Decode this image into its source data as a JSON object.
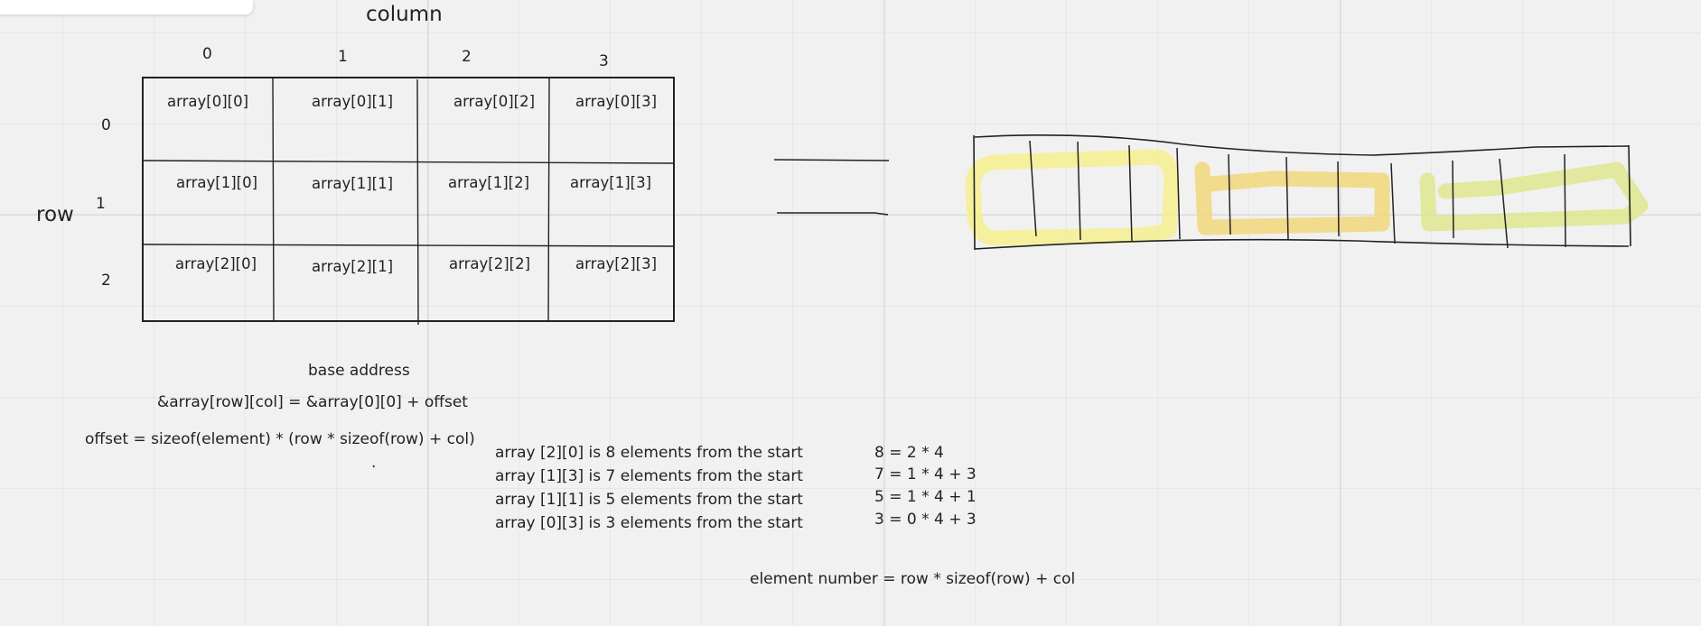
{
  "titles": {
    "column": "column",
    "row": "row"
  },
  "column_indices": [
    "0",
    "1",
    "2",
    "3"
  ],
  "row_indices": [
    "0",
    "1",
    "2"
  ],
  "cells": [
    [
      "array[0][0]",
      "array[0][1]",
      "array[0][2]",
      "array[0][3]"
    ],
    [
      "array[1][0]",
      "array[1][1]",
      "array[1][2]",
      "array[1][3]"
    ],
    [
      "array[2][0]",
      "array[2][1]",
      "array[2][2]",
      "array[2][3]"
    ]
  ],
  "notes": {
    "base_address": "base address",
    "address_formula": "&array[row][col] = &array[0][0] + offset",
    "offset_formula": "offset = sizeof(element) * (row * sizeof(row) + col)",
    "dot": ".",
    "element_number": "element number = row * sizeof(row) + col"
  },
  "examples": [
    {
      "text": "array [2][0] is 8 elements from the start",
      "calc": "8 = 2 * 4"
    },
    {
      "text": "array [1][3] is 7 elements from the start",
      "calc": "7 = 1 * 4 + 3"
    },
    {
      "text": "array [1][1] is 5 elements from the start",
      "calc": "5 = 1 * 4 + 1"
    },
    {
      "text": "array [0][3] is 3 elements from the start",
      "calc": "3 = 0 * 4 + 3"
    }
  ],
  "colors": {
    "background": "#f1f1f1",
    "ink": "#222222",
    "highlight_yellow": "#f6f08e",
    "highlight_orange": "#f1d77a",
    "highlight_green": "#dfe68f"
  }
}
